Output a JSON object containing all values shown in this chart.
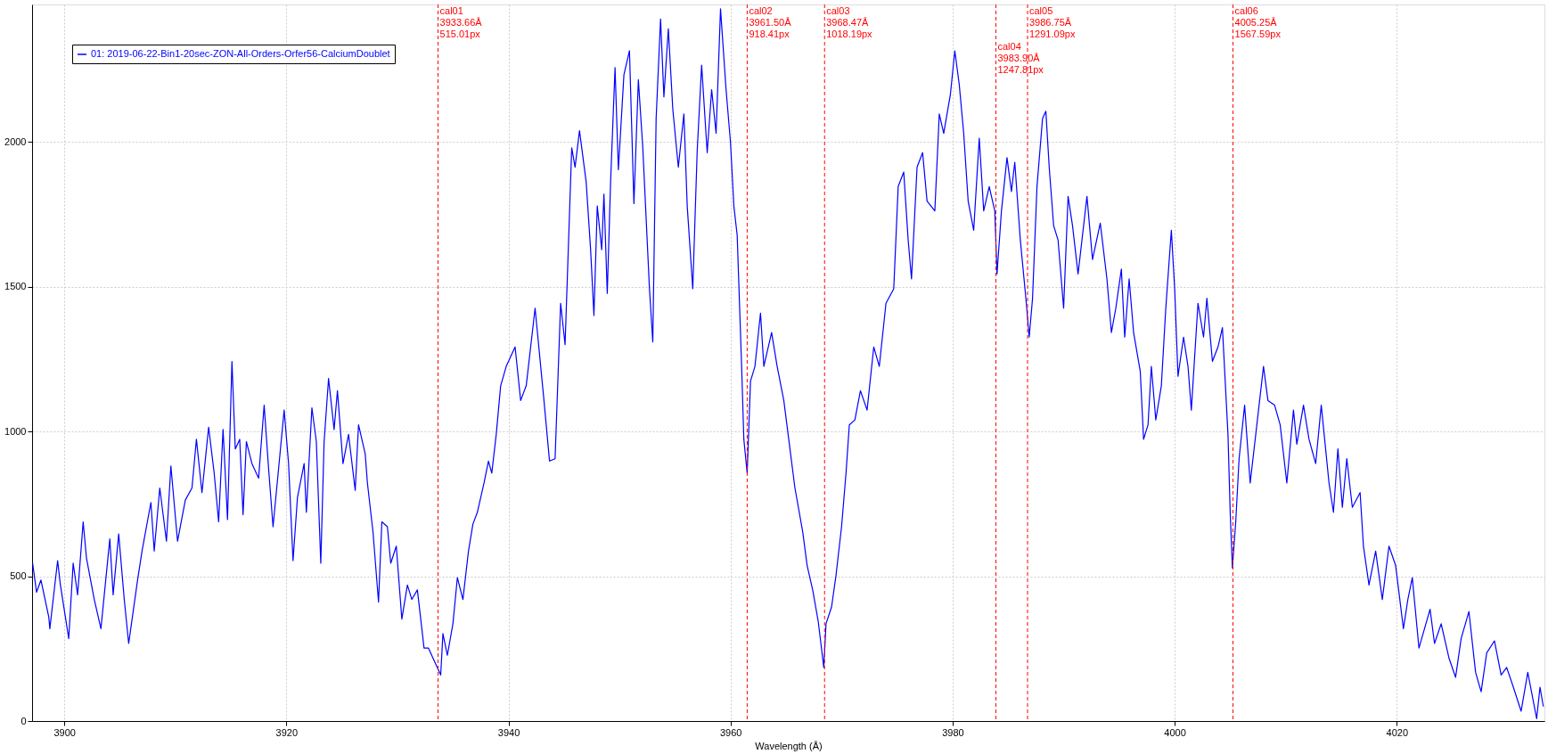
{
  "chart_data": {
    "type": "line",
    "xlabel": "Wavelength (Å)",
    "xlim": [
      3897.1,
      4033.3
    ],
    "ylim": [
      0,
      2475
    ],
    "xticks": [
      3900,
      3920,
      3940,
      3960,
      3980,
      4000,
      4020
    ],
    "yticks": [
      0,
      500,
      1000,
      1500,
      2000
    ],
    "grid": true,
    "legend": "top left",
    "marker": "none",
    "line_style": "solid",
    "series": [
      {
        "name": "01: 2019-06-22-Bin1-20sec-ZON-All-Orders-Orfer56-CalciumDoublet",
        "color": "#0000ff",
        "x": [
          3897.15,
          3897.5,
          3897.9,
          3898.6,
          3898.7,
          3899.4,
          3899.65,
          3900.4,
          3900.8,
          3901.2,
          3901.7,
          3902.0,
          3902.7,
          3903.3,
          3904.1,
          3904.4,
          3904.9,
          3905.4,
          3905.8,
          3906.6,
          3907.0,
          3907.8,
          3908.1,
          3908.6,
          3909.2,
          3909.6,
          3910.2,
          3910.9,
          3911.5,
          3911.9,
          3912.4,
          3913.0,
          3913.5,
          3913.9,
          3914.3,
          3914.7,
          3915.1,
          3915.4,
          3915.8,
          3916.1,
          3916.4,
          3916.9,
          3917.5,
          3918.0,
          3918.4,
          3918.8,
          3919.3,
          3919.8,
          3920.2,
          3920.6,
          3921.0,
          3921.6,
          3921.8,
          3922.3,
          3922.7,
          3923.1,
          3923.4,
          3923.8,
          3924.3,
          3924.6,
          3925.1,
          3925.6,
          3926.2,
          3926.5,
          3927.1,
          3927.3,
          3927.8,
          3928.3,
          3928.6,
          3929.1,
          3929.4,
          3929.9,
          3930.4,
          3930.9,
          3931.3,
          3931.8,
          3932.4,
          3932.8,
          3933.4,
          3933.9,
          3934.1,
          3934.5,
          3935.0,
          3935.4,
          3935.9,
          3936.4,
          3936.8,
          3937.2,
          3937.8,
          3938.2,
          3938.5,
          3938.9,
          3939.3,
          3939.8,
          3940.6,
          3941.1,
          3941.6,
          3942.4,
          3943.2,
          3943.7,
          3944.2,
          3944.7,
          3945.1,
          3945.7,
          3946.0,
          3946.4,
          3947.0,
          3947.4,
          3947.7,
          3948.0,
          3948.4,
          3948.6,
          3948.9,
          3949.2,
          3949.6,
          3949.9,
          3950.4,
          3950.9,
          3951.3,
          3951.7,
          3952.1,
          3952.7,
          3953.0,
          3953.3,
          3953.7,
          3954.0,
          3954.4,
          3954.8,
          3955.3,
          3955.8,
          3956.1,
          3956.6,
          3957.0,
          3957.4,
          3957.9,
          3958.3,
          3958.7,
          3959.1,
          3959.6,
          3960.0,
          3960.3,
          3960.6,
          3961.0,
          3961.2,
          3961.5,
          3961.8,
          3962.2,
          3962.7,
          3963.0,
          3963.7,
          3964.2,
          3964.8,
          3965.3,
          3965.8,
          3966.5,
          3966.9,
          3967.4,
          3967.9,
          3968.4,
          3968.6,
          3969.1,
          3969.5,
          3970.0,
          3970.4,
          3970.7,
          3971.2,
          3971.7,
          3972.3,
          3972.9,
          3973.4,
          3974.0,
          3974.7,
          3975.1,
          3975.6,
          3976.0,
          3976.3,
          3976.8,
          3977.3,
          3977.7,
          3978.4,
          3978.8,
          3979.2,
          3979.8,
          3980.2,
          3980.6,
          3981.0,
          3981.4,
          3981.9,
          3982.4,
          3982.8,
          3983.3,
          3983.8,
          3984.0,
          3984.4,
          3984.9,
          3985.3,
          3985.6,
          3986.1,
          3986.6,
          3986.9,
          3987.2,
          3987.6,
          3988.1,
          3988.4,
          3988.7,
          3989.1,
          3989.5,
          3990.0,
          3990.4,
          3990.8,
          3991.3,
          3992.1,
          3992.6,
          3993.3,
          3993.9,
          3994.3,
          3994.7,
          3995.2,
          3995.5,
          3995.9,
          3996.3,
          3996.9,
          3997.2,
          3997.6,
          3997.9,
          3998.3,
          3998.8,
          3999.2,
          3999.7,
          4000.0,
          4000.3,
          4000.8,
          4001.2,
          4001.5,
          4002.1,
          4002.6,
          4002.9,
          4003.4,
          4003.9,
          4004.3,
          4004.8,
          4005.0,
          4005.2,
          4005.5,
          4005.8,
          4006.3,
          4006.8,
          4007.4,
          4008.0,
          4008.4,
          4009.0,
          4009.5,
          4010.1,
          4010.7,
          4011.0,
          4011.6,
          4012.1,
          4012.7,
          4013.2,
          4013.9,
          4014.3,
          4014.7,
          4015.1,
          4015.5,
          4016.0,
          4016.7,
          4017.0,
          4017.5,
          4018.1,
          4018.7,
          4019.3,
          4019.9,
          4020.6,
          4021.0,
          4021.4,
          4022.0,
          4022.5,
          4023.0,
          4023.4,
          4024.0,
          4024.7,
          4025.3,
          4025.8,
          4026.5,
          4027.1,
          4027.6,
          4028.1,
          4028.8,
          4029.4,
          4029.9,
          4030.5,
          4031.2,
          4031.8,
          4032.6,
          4032.9,
          4033.2
        ],
        "values": [
          545,
          445,
          487,
          360,
          319,
          554,
          470,
          285,
          545,
          436,
          688,
          562,
          420,
          319,
          629,
          436,
          646,
          420,
          268,
          487,
          587,
          755,
          587,
          805,
          621,
          881,
          621,
          763,
          805,
          973,
          789,
          1015,
          856,
          688,
          1007,
          696,
          1242,
          940,
          973,
          713,
          965,
          889,
          839,
          1091,
          872,
          671,
          872,
          1074,
          889,
          554,
          772,
          889,
          721,
          1082,
          965,
          545,
          965,
          1183,
          1007,
          1141,
          889,
          990,
          797,
          1023,
          923,
          822,
          654,
          411,
          688,
          671,
          545,
          604,
          352,
          470,
          420,
          453,
          252,
          252,
          201,
          159,
          302,
          227,
          336,
          495,
          420,
          587,
          680,
          721,
          822,
          898,
          856,
          990,
          1158,
          1225,
          1292,
          1107,
          1158,
          1426,
          1107,
          898,
          906,
          1443,
          1300,
          1980,
          1913,
          2039,
          1862,
          1628,
          1401,
          1779,
          1628,
          1820,
          1477,
          1862,
          2257,
          1904,
          2232,
          2315,
          1787,
          2215,
          1980,
          1493,
          1309,
          2081,
          2425,
          2156,
          2391,
          2114,
          1913,
          2097,
          1779,
          1493,
          1971,
          2265,
          1963,
          2181,
          2030,
          2460,
          2181,
          1997,
          1779,
          1678,
          1225,
          973,
          856,
          1174,
          1225,
          1409,
          1225,
          1342,
          1225,
          1107,
          956,
          805,
          654,
          537,
          453,
          344,
          185,
          336,
          394,
          503,
          671,
          856,
          1023,
          1040,
          1141,
          1074,
          1292,
          1225,
          1443,
          1493,
          1846,
          1896,
          1661,
          1527,
          1913,
          1963,
          1796,
          1762,
          2097,
          2030,
          2164,
          2315,
          2198,
          2030,
          1796,
          1695,
          2013,
          1762,
          1846,
          1762,
          1544,
          1762,
          1946,
          1829,
          1930,
          1661,
          1460,
          1326,
          1460,
          1846,
          2081,
          2106,
          1913,
          1711,
          1661,
          1426,
          1812,
          1711,
          1544,
          1812,
          1594,
          1720,
          1527,
          1342,
          1426,
          1561,
          1326,
          1527,
          1342,
          1208,
          973,
          1023,
          1225,
          1040,
          1158,
          1426,
          1695,
          1493,
          1191,
          1326,
          1225,
          1074,
          1443,
          1326,
          1460,
          1242,
          1292,
          1359,
          990,
          721,
          529,
          688,
          906,
          1091,
          822,
          1023,
          1225,
          1107,
          1091,
          1023,
          822,
          1074,
          956,
          1091,
          973,
          889,
          1091,
          822,
          721,
          940,
          738,
          906,
          738,
          789,
          604,
          470,
          587,
          420,
          604,
          537,
          319,
          420,
          495,
          252,
          319,
          386,
          268,
          336,
          218,
          151,
          285,
          378,
          168,
          101,
          235,
          277,
          159,
          185,
          117,
          34,
          168,
          8,
          117,
          50
        ]
      }
    ],
    "ref_lines": [
      {
        "axis": "x",
        "value": 3933.66,
        "label": "cal01\n3933.66Å\n515.01px",
        "color": "#ff0000",
        "line_style": "dashed"
      },
      {
        "axis": "x",
        "value": 3961.5,
        "label": "cal02\n3961.50Å\n918.41px",
        "color": "#ff0000",
        "line_style": "dashed"
      },
      {
        "axis": "x",
        "value": 3968.47,
        "label": "cal03\n3968.47Å\n1018.19px",
        "color": "#ff0000",
        "line_style": "dashed"
      },
      {
        "axis": "x",
        "value": 3983.9,
        "label": "cal04\n3983.90Å\n1247.81px",
        "color": "#ff0000",
        "line_style": "dashed"
      },
      {
        "axis": "x",
        "value": 3986.75,
        "label": "cal05\n3986.75Å\n1291.09px",
        "color": "#ff0000",
        "line_style": "dashed"
      },
      {
        "axis": "x",
        "value": 4005.25,
        "label": "cal06\n4005.25Å\n1567.59px",
        "color": "#ff0000",
        "line_style": "dashed"
      }
    ]
  }
}
